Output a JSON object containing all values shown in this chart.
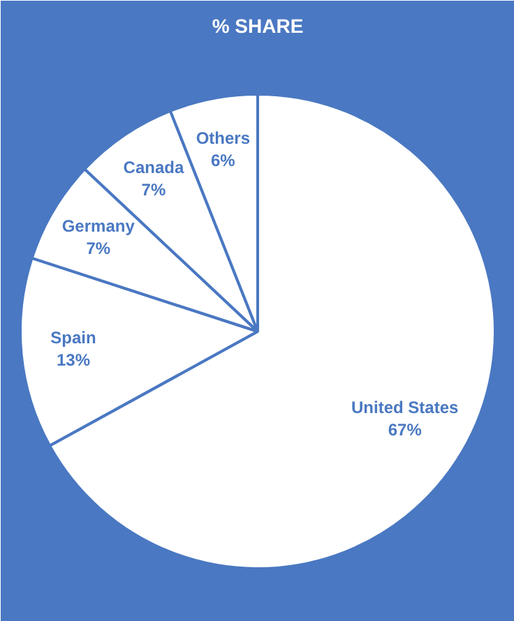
{
  "chart_data": {
    "type": "pie",
    "title": "% SHARE",
    "categories": [
      "United States",
      "Spain",
      "Germany",
      "Canada",
      "Others"
    ],
    "values": [
      67,
      13,
      7,
      7,
      6
    ],
    "colors": [
      "#ffffff",
      "#ffffff",
      "#ffffff",
      "#ffffff",
      "#ffffff"
    ],
    "value_labels": [
      "67%",
      "13%",
      "7%",
      "7%",
      "6%"
    ]
  }
}
